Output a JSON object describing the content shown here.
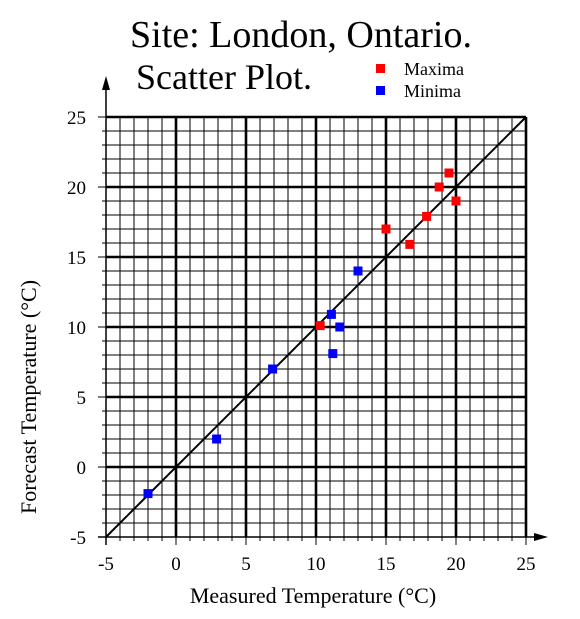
{
  "chart_data": {
    "type": "scatter",
    "title": "Site: London, Ontario.",
    "subtitle": "Scatter Plot.",
    "xlabel": "Measured Temperature (°C)",
    "ylabel": "Forecast Temperature (°C)",
    "xlim": [
      -5,
      25
    ],
    "ylim": [
      -5,
      25
    ],
    "x_ticks": [
      "-5",
      "0",
      "5",
      "10",
      "15",
      "20",
      "25"
    ],
    "y_ticks": [
      "-5",
      "0",
      "5",
      "10",
      "15",
      "20",
      "25"
    ],
    "grid": true,
    "legend_position": "top-right",
    "reference_line": {
      "from": [
        -5,
        -5
      ],
      "to": [
        25,
        25
      ]
    },
    "series": [
      {
        "name": "Maxima",
        "color": "#ff0000",
        "points": [
          [
            10.3,
            10.1
          ],
          [
            15.0,
            17.0
          ],
          [
            16.7,
            15.9
          ],
          [
            17.9,
            17.9
          ],
          [
            18.8,
            20.0
          ],
          [
            19.5,
            21.0
          ],
          [
            20.0,
            19.0
          ]
        ]
      },
      {
        "name": "Minima",
        "color": "#0000ff",
        "points": [
          [
            -2.0,
            -1.9
          ],
          [
            2.9,
            2.0
          ],
          [
            6.9,
            7.0
          ],
          [
            11.1,
            10.9
          ],
          [
            11.2,
            8.1
          ],
          [
            11.7,
            10.0
          ],
          [
            13.0,
            14.0
          ]
        ]
      }
    ]
  }
}
